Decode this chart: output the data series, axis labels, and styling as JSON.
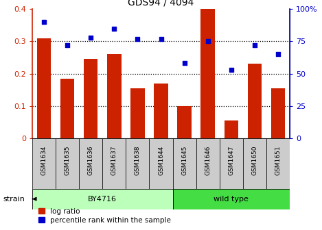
{
  "title": "GDS94 / 4094",
  "categories": [
    "GSM1634",
    "GSM1635",
    "GSM1636",
    "GSM1637",
    "GSM1638",
    "GSM1644",
    "GSM1645",
    "GSM1646",
    "GSM1647",
    "GSM1650",
    "GSM1651"
  ],
  "log_ratio": [
    0.31,
    0.185,
    0.245,
    0.26,
    0.155,
    0.17,
    0.1,
    0.4,
    0.055,
    0.23,
    0.155
  ],
  "percentile": [
    90,
    72,
    78,
    85,
    77,
    77,
    58,
    75,
    53,
    72,
    65
  ],
  "bar_color": "#cc2200",
  "dot_color": "#0000cc",
  "ylim_left": [
    0,
    0.4
  ],
  "ylim_right": [
    0,
    100
  ],
  "yticks_left": [
    0,
    0.1,
    0.2,
    0.3,
    0.4
  ],
  "yticks_right": [
    0,
    25,
    50,
    75,
    100
  ],
  "ytick_labels_right": [
    "0",
    "25",
    "50",
    "75",
    "100%"
  ],
  "strain_groups": [
    {
      "label": "BY4716",
      "indices": [
        0,
        5
      ],
      "color": "#bbffbb"
    },
    {
      "label": "wild type",
      "indices": [
        6,
        10
      ],
      "color": "#44dd44"
    }
  ],
  "strain_label": "strain",
  "legend_bar_label": "log ratio",
  "legend_dot_label": "percentile rank within the sample",
  "tick_area_color": "#cccccc",
  "bar_width": 0.6
}
